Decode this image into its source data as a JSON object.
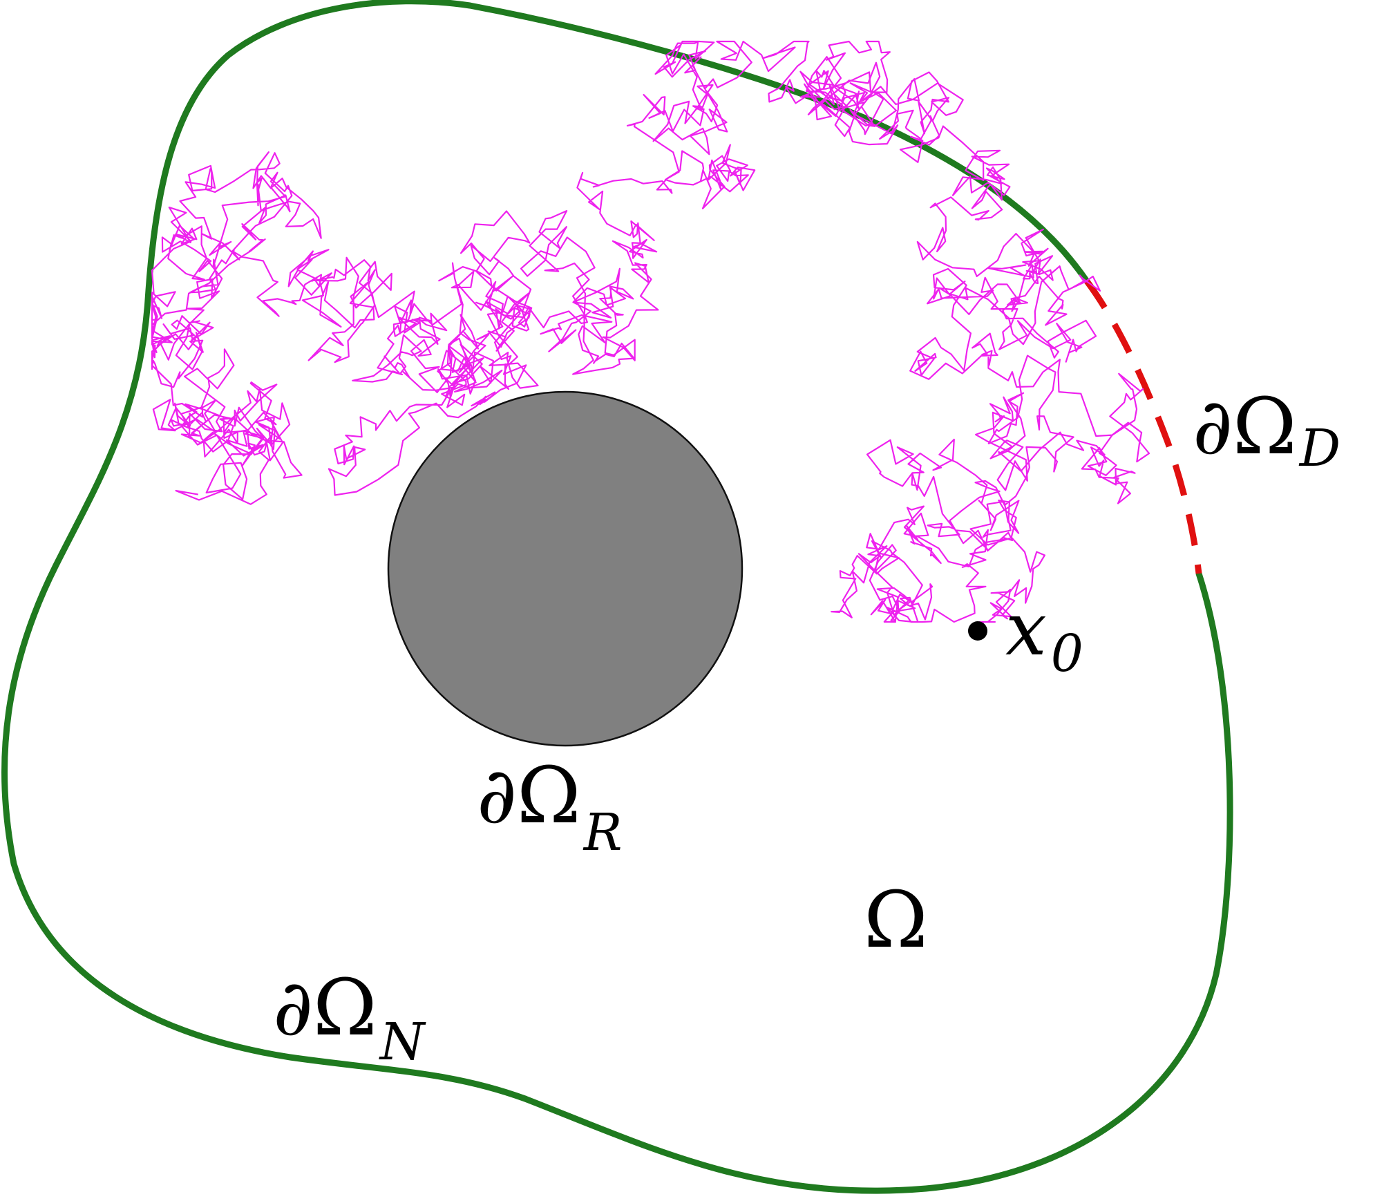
{
  "colors": {
    "background": "#ffffff",
    "neumann_boundary": "#1f7a1f",
    "dirichlet_boundary": "#e01010",
    "reflecting_obstacle_fill": "#808080",
    "reflecting_obstacle_stroke": "#111111",
    "trajectory": "#ee22ee",
    "start_point": "#000000"
  },
  "labels": {
    "dirichlet": {
      "main": "∂Ω",
      "sub": "D"
    },
    "reflecting": {
      "main": "∂Ω",
      "sub": "R"
    },
    "neumann": {
      "main": "∂Ω",
      "sub": "N"
    },
    "domain": "Ω",
    "start": {
      "main": "x",
      "sub": "0"
    }
  },
  "icons": {
    "obstacle": "filled-disk",
    "start_point": "dot"
  }
}
